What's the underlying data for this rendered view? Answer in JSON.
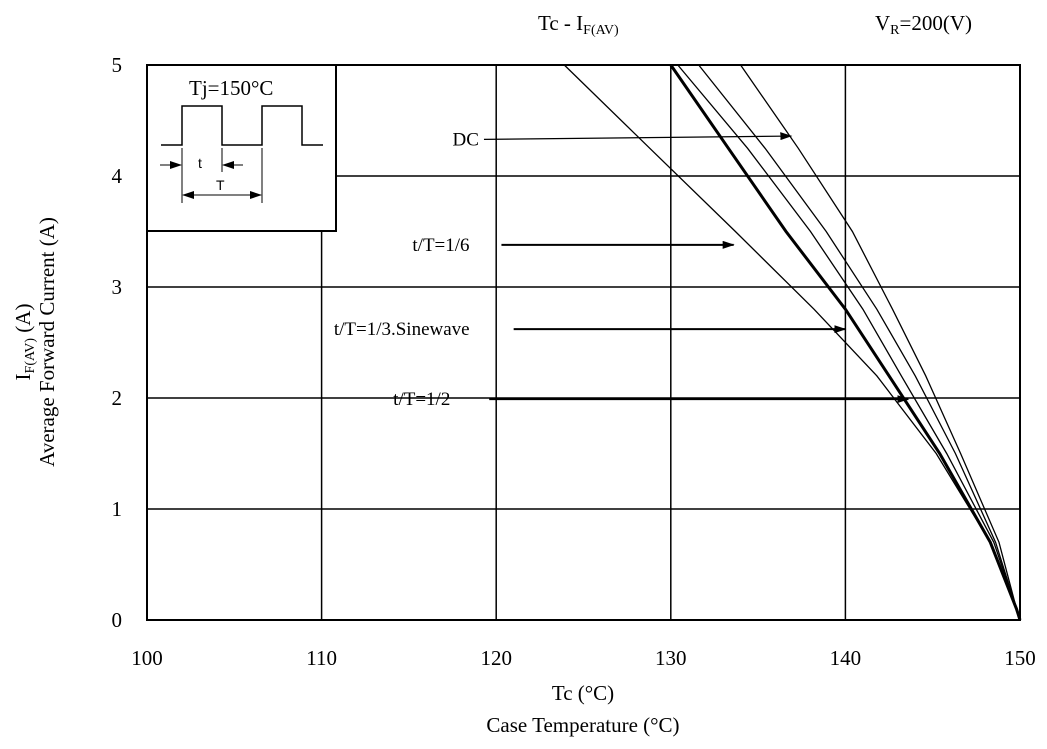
{
  "header": {
    "title_main": "Tc - I",
    "title_sub": "F(AV)",
    "vr_prefix": "V",
    "vr_sub": "R",
    "vr_suffix": "=200(V)"
  },
  "chart_data": {
    "type": "line",
    "title": "Tc - IF(AV)",
    "condition": "VR=200(V)",
    "xlabel_line1": "Tc (°C)",
    "xlabel_line2": "Case Temperature (°C)",
    "ylabel_line1_main": "I",
    "ylabel_line1_sub": "F(AV)",
    "ylabel_line1_suffix": " (A)",
    "ylabel_line2": "Average Forward Current (A)",
    "xlim": [
      100,
      150
    ],
    "ylim": [
      0,
      5
    ],
    "x_ticks": [
      100,
      110,
      120,
      130,
      140,
      150
    ],
    "y_ticks": [
      0,
      1,
      2,
      3,
      4,
      5
    ],
    "x_tick_labels": [
      "100",
      "110",
      "120",
      "130",
      "140",
      "150"
    ],
    "y_tick_labels": [
      "0",
      "1",
      "2",
      "3",
      "4",
      "5"
    ],
    "grid": true,
    "series": [
      {
        "name": "t/T=1/6",
        "points": [
          [
            123.9,
            5
          ],
          [
            128.8,
            4.25
          ],
          [
            133.7,
            3.5
          ],
          [
            138.2,
            2.8
          ],
          [
            141.8,
            2.2
          ],
          [
            145.2,
            1.5
          ],
          [
            148.3,
            0.7
          ],
          [
            149.8,
            0.1
          ],
          [
            150,
            0
          ]
        ],
        "bold": false
      },
      {
        "name": "t/T=1/3.Sinewave",
        "points": [
          [
            130.0,
            5
          ],
          [
            133.3,
            4.25
          ],
          [
            136.6,
            3.5
          ],
          [
            140.0,
            2.8
          ],
          [
            142.5,
            2.2
          ],
          [
            145.4,
            1.5
          ],
          [
            148.3,
            0.7
          ],
          [
            149.8,
            0.1
          ],
          [
            150,
            0
          ]
        ],
        "bold": true
      },
      {
        "name": "t/T=1/2",
        "points": [
          [
            130.4,
            5
          ],
          [
            134.4,
            4.25
          ],
          [
            138.0,
            3.5
          ],
          [
            141.0,
            2.8
          ],
          [
            143.2,
            2.2
          ],
          [
            145.8,
            1.5
          ],
          [
            148.5,
            0.7
          ],
          [
            149.8,
            0.1
          ],
          [
            150,
            0
          ]
        ],
        "bold": false
      },
      {
        "name": "",
        "points": [
          [
            131.6,
            5
          ],
          [
            135.4,
            4.25
          ],
          [
            138.9,
            3.5
          ],
          [
            141.8,
            2.8
          ],
          [
            144.0,
            2.2
          ],
          [
            146.3,
            1.5
          ],
          [
            148.6,
            0.7
          ],
          [
            149.8,
            0.1
          ],
          [
            150,
            0
          ]
        ],
        "bold": false
      },
      {
        "name": "DC",
        "points": [
          [
            134.0,
            5
          ],
          [
            137.3,
            4.25
          ],
          [
            140.4,
            3.5
          ],
          [
            142.7,
            2.8
          ],
          [
            144.6,
            2.2
          ],
          [
            146.6,
            1.5
          ],
          [
            148.8,
            0.7
          ],
          [
            149.8,
            0.1
          ],
          [
            150,
            0
          ]
        ],
        "bold": false
      }
    ],
    "annotations": [
      {
        "label": "DC",
        "text_at": [
          117.5,
          4.33
        ],
        "arrow_from": [
          119.3,
          4.33
        ],
        "arrow_to": [
          136.9,
          4.36
        ]
      },
      {
        "label": "t/T=1/6",
        "text_at": [
          115.2,
          3.38
        ],
        "arrow_from": [
          120.3,
          3.38
        ],
        "arrow_to": [
          133.6,
          3.38
        ]
      },
      {
        "label": "t/T=1/3.Sinewave",
        "text_at": [
          110.7,
          2.62
        ],
        "arrow_from": [
          121.0,
          2.62
        ],
        "arrow_to": [
          140.0,
          2.62
        ]
      },
      {
        "label": "t/T=1/2",
        "text_at": [
          114.1,
          1.99
        ],
        "arrow_from": [
          119.6,
          1.99
        ],
        "arrow_to": [
          143.6,
          1.99
        ]
      }
    ],
    "inset": {
      "label": "Tj=150°C",
      "t_label": "t",
      "T_label": "T"
    }
  }
}
